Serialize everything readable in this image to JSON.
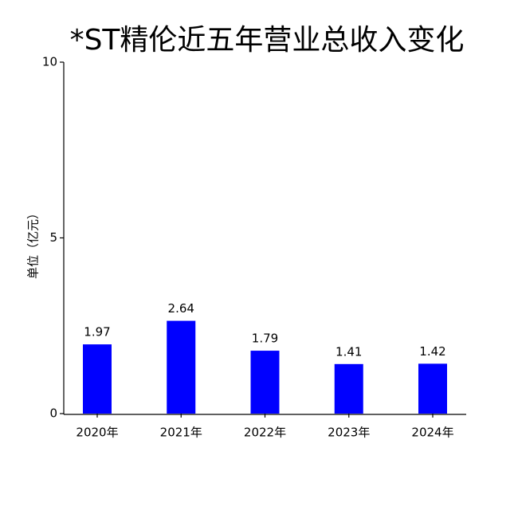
{
  "chart_data": {
    "type": "bar",
    "title": "*ST精伦近五年营业总收入变化",
    "y_label": "单位（亿元）",
    "categories": [
      "2020年",
      "2021年",
      "2022年",
      "2023年",
      "2024年"
    ],
    "values": [
      1.97,
      2.64,
      1.79,
      1.41,
      1.42
    ],
    "color": "#0000ff",
    "ylim": [
      0,
      10
    ],
    "yticks": [
      0,
      5,
      10
    ],
    "grid": false,
    "data_labels": true
  }
}
